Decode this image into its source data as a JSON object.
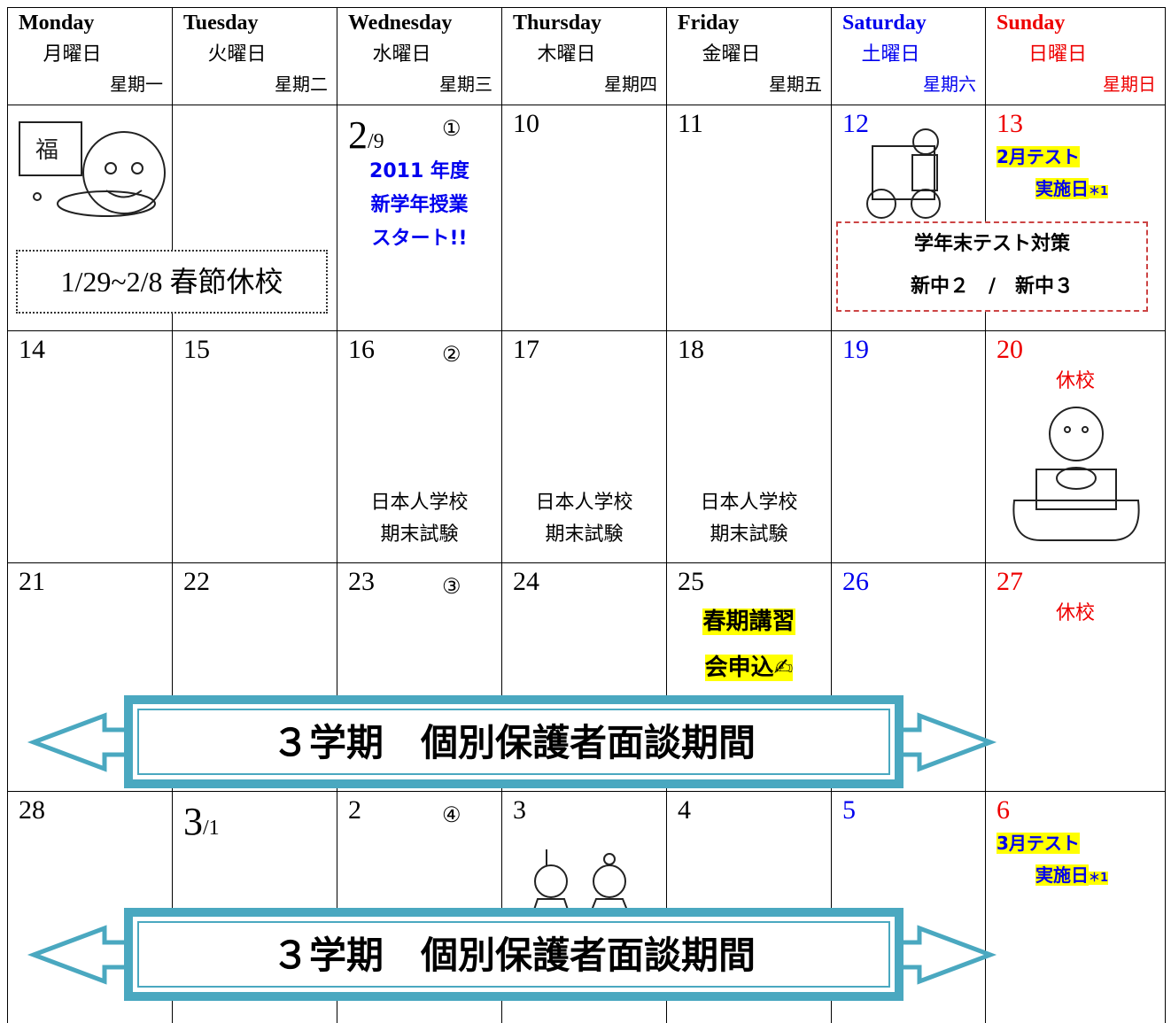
{
  "header": {
    "days": [
      {
        "en": "Monday",
        "ja": "月曜日",
        "zh": "星期一"
      },
      {
        "en": "Tuesday",
        "ja": "火曜日",
        "zh": "星期二"
      },
      {
        "en": "Wednesday",
        "ja": "水曜日",
        "zh": "星期三"
      },
      {
        "en": "Thursday",
        "ja": "木曜日",
        "zh": "星期四"
      },
      {
        "en": "Friday",
        "ja": "金曜日",
        "zh": "星期五"
      },
      {
        "en": "Saturday",
        "ja": "土曜日",
        "zh": "星期六"
      },
      {
        "en": "Sunday",
        "ja": "日曜日",
        "zh": "星期日"
      }
    ]
  },
  "weeks": [
    {
      "cells": [
        {},
        {},
        {
          "date": "2",
          "date_sub": "/9",
          "mark": "①",
          "notes": [
            "2011 年度",
            "新学年授業",
            "スタート!!"
          ]
        },
        {
          "date": "10"
        },
        {
          "date": "11"
        },
        {
          "date": "12"
        },
        {
          "date": "13",
          "notes": [
            "2月テスト",
            "実施日"
          ],
          "note_sup": "＊1"
        }
      ]
    },
    {
      "cells": [
        {
          "date": "14"
        },
        {
          "date": "15"
        },
        {
          "date": "16",
          "mark": "②",
          "notes": [
            "日本人学校",
            "期末試験"
          ]
        },
        {
          "date": "17",
          "notes": [
            "日本人学校",
            "期末試験"
          ]
        },
        {
          "date": "18",
          "notes": [
            "日本人学校",
            "期末試験"
          ]
        },
        {
          "date": "19"
        },
        {
          "date": "20",
          "notes": [
            "休校"
          ]
        }
      ]
    },
    {
      "cells": [
        {
          "date": "21"
        },
        {
          "date": "22"
        },
        {
          "date": "23",
          "mark": "③"
        },
        {
          "date": "24"
        },
        {
          "date": "25",
          "notes": [
            "春期講習",
            "会申込✍"
          ]
        },
        {
          "date": "26"
        },
        {
          "date": "27",
          "notes": [
            "休校"
          ]
        }
      ]
    },
    {
      "cells": [
        {
          "date": "28"
        },
        {
          "date": "3",
          "date_sub": "/1"
        },
        {
          "date": "2",
          "mark": "④"
        },
        {
          "date": "3"
        },
        {
          "date": "4"
        },
        {
          "date": "5"
        },
        {
          "date": "6",
          "notes": [
            "3月テスト",
            "実施日"
          ],
          "note_sup": "＊1"
        }
      ]
    }
  ],
  "notices": {
    "spring_festival": "1/29~2/8 春節休校",
    "exam_prep": {
      "title": "学年末テスト対策",
      "grades": "新中２　/　新中３"
    }
  },
  "banners": [
    "３学期　個別保護者面談期間",
    "３学期　個別保護者面談期間"
  ]
}
